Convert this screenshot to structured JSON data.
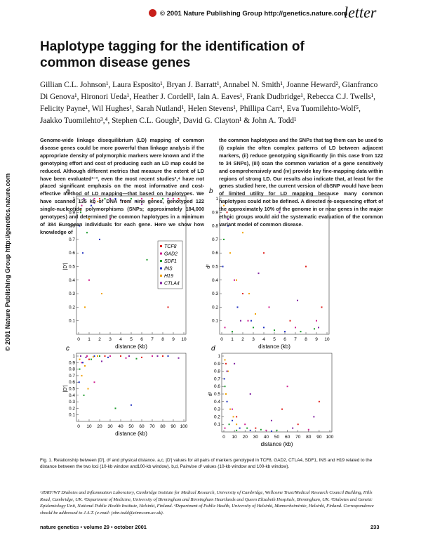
{
  "header": {
    "copyright": "© 2001 Nature Publishing Group http://genetics.nature.com",
    "section": "letter"
  },
  "side_text": "© 2001 Nature Publishing Group http://genetics.nature.com",
  "title": "Haplotype tagging for the identification of common disease genes",
  "authors": "Gillian C.L. Johnson¹, Laura Esposito¹, Bryan J. Barratt¹, Annabel N. Smith¹, Joanne Heward², Gianfranco Di Genova¹, Hironori Ueda¹, Heather J. Cordell¹, Iain A. Eaves¹, Frank Dudbridge¹, Rebecca C.J. Twells¹, Felicity Payne¹, Wil Hughes¹, Sarah Nutland¹, Helen Stevens¹, Phillipa Carr¹, Eva Tuomilehto-Wolf⁵, Jaakko Tuomilehto³,⁴, Stephen C.L. Gough², David G. Clayton¹ & John A. Todd¹",
  "abstract": [
    "Genome-wide linkage disequilibrium (LD) mapping of common disease genes could be more powerful than linkage analysis if the appropriate density of polymorphic markers were known and if the genotyping effort and cost of producing such an LD map could be reduced. Although different metrics that measure the extent of LD have been evaluated¹⁻³, even the most recent studies²,⁴ have not placed significant emphasis on the most informative and cost-effective method of LD mapping—that based on haplotypes. We have scanned 135 kb of DNA from nine genes, genotyped 122 single-nucleotide polymorphisms (SNPs; approximately 184,000 genotypes) and determined the common haplotypes in a minimum of 384 European individuals for each gene. Here we show how knowledge of",
    "the common haplotypes and the SNPs that tag them can be used to (i) explain the often complex patterns of LD between adjacent markers, (ii) reduce genotyping significantly (in this case from 122 to 34 SNPs), (iii) scan the common variation of a gene sensitively and comprehensively and (iv) provide key fine-mapping data within regions of strong LD. Our results also indicate that, at least for the genes studied here, the current version of dbSNP would have been of limited utility for LD mapping because many common haplotypes could not be defined. A directed re-sequencing effort of the approximately 10% of the genome in or near genes in the major ethnic groups would aid the systematic evaluation of the common variant model of common disease."
  ],
  "figure": {
    "legend": [
      {
        "name": "TCF8",
        "color": "#e0201c"
      },
      {
        "name": "GAD2",
        "color": "#d02090"
      },
      {
        "name": "SDF1",
        "color": "#1a9a2a"
      },
      {
        "name": "INS",
        "color": "#2030c0"
      },
      {
        "name": "H19",
        "color": "#f0a000"
      },
      {
        "name": "CTLA4",
        "color": "#8020a0"
      }
    ],
    "panels": [
      {
        "letter": "a",
        "ylabel": "|D′|",
        "xlabel": "distance (kb)",
        "xlim": [
          0,
          10
        ],
        "ylim": [
          0,
          1
        ],
        "xticks": [
          0,
          1,
          2,
          3,
          4,
          5,
          6,
          7,
          8,
          9,
          10
        ],
        "yticks": [
          0.1,
          0.2,
          0.3,
          0.4,
          0.5,
          0.6,
          0.7,
          0.8,
          0.9,
          1
        ],
        "series": [
          {
            "x": [
              0.5,
              2,
              4.5,
              7,
              8.5,
              9.5
            ],
            "y": [
              1,
              1,
              0.98,
              1,
              0.2,
              1
            ]
          },
          {
            "x": [
              0.3,
              1,
              1.5,
              3,
              6,
              9
            ],
            "y": [
              0.95,
              0.4,
              1,
              0.85,
              1,
              1
            ]
          },
          {
            "x": [
              0.2,
              0.8,
              2.5,
              5,
              6.5,
              8
            ],
            "y": [
              0.9,
              0.75,
              1,
              1,
              0.55,
              1
            ]
          },
          {
            "x": [
              0.1,
              0.4,
              1.2,
              2,
              3.5,
              5.5
            ],
            "y": [
              0.8,
              0.6,
              0.95,
              0.7,
              1,
              0.98
            ]
          },
          {
            "x": [
              0.2,
              0.6,
              1,
              1.8,
              2.2,
              3
            ],
            "y": [
              0.92,
              0.2,
              0.85,
              0.98,
              0.3,
              1
            ]
          },
          {
            "x": [
              0.5,
              1.5,
              3,
              4,
              6,
              8.5
            ],
            "y": [
              1,
              0.97,
              1,
              0.99,
              0.96,
              1
            ]
          }
        ]
      },
      {
        "letter": "b",
        "ylabel": "d²",
        "xlabel": "distance (kb)",
        "xlim": [
          0,
          10
        ],
        "ylim": [
          0,
          1
        ],
        "xticks": [
          0,
          1,
          2,
          3,
          4,
          5,
          6,
          7,
          8,
          9,
          10
        ],
        "yticks": [
          0.1,
          0.2,
          0.3,
          0.4,
          0.5,
          0.6,
          0.7,
          0.8,
          0.9,
          1
        ],
        "series": [
          {
            "x": [
              0.5,
              2,
              4,
              6.5,
              8,
              9.5
            ],
            "y": [
              0.9,
              0.3,
              0.6,
              0.1,
              0.5,
              0.2
            ]
          },
          {
            "x": [
              0.3,
              1.2,
              2.5,
              4.5,
              7,
              9
            ],
            "y": [
              0.05,
              0.4,
              0.1,
              0.2,
              0.05,
              0.1
            ]
          },
          {
            "x": [
              0.2,
              1,
              3,
              5,
              7.5,
              8.8
            ],
            "y": [
              0.7,
              0.02,
              0.05,
              0.03,
              0.02,
              0.04
            ]
          },
          {
            "x": [
              0.1,
              0.6,
              1.5,
              2.8,
              4,
              6
            ],
            "y": [
              0.5,
              0.8,
              0.2,
              0.1,
              0.05,
              0.02
            ]
          },
          {
            "x": [
              0.2,
              0.8,
              1.4,
              2,
              2.6,
              3.2
            ],
            "y": [
              0.95,
              0.6,
              0.4,
              0.75,
              0.3,
              0.15
            ]
          },
          {
            "x": [
              0.6,
              1.8,
              3.5,
              5.5,
              7.2,
              9.2
            ],
            "y": [
              0.85,
              0.1,
              0.45,
              0.9,
              0.25,
              0.05
            ]
          }
        ]
      },
      {
        "letter": "c",
        "ylabel": "|D′|",
        "xlabel": "distance (kb)",
        "xlim": [
          0,
          100
        ],
        "ylim": [
          0,
          1
        ],
        "xticks": [
          0,
          10,
          20,
          30,
          40,
          50,
          60,
          70,
          80,
          90,
          100
        ],
        "yticks": [
          0.1,
          0.2,
          0.3,
          0.4,
          0.5,
          0.6,
          0.7,
          0.8,
          0.9,
          1
        ],
        "series": [
          {
            "x": [
              2,
              10,
              25,
              40,
              60,
              80
            ],
            "y": [
              1,
              0.95,
              1,
              1,
              0.98,
              1
            ]
          },
          {
            "x": [
              3,
              8,
              15,
              30,
              45,
              70
            ],
            "y": [
              0.9,
              1,
              0.6,
              1,
              0.97,
              1
            ]
          },
          {
            "x": [
              1,
              5,
              12,
              20,
              35,
              55
            ],
            "y": [
              0.8,
              0.4,
              0.95,
              1,
              0.2,
              0.96
            ]
          },
          {
            "x": [
              0.5,
              4,
              15,
              28,
              50,
              85
            ],
            "y": [
              0.6,
              0.9,
              1,
              0.98,
              0.25,
              1
            ]
          },
          {
            "x": [
              1,
              3,
              6,
              9,
              14,
              18
            ],
            "y": [
              0.95,
              0.7,
              0.85,
              0.5,
              0.99,
              1
            ]
          },
          {
            "x": [
              2,
              7,
              22,
              48,
              75,
              95
            ],
            "y": [
              1,
              0.98,
              0.92,
              1,
              1,
              0.97
            ]
          }
        ]
      },
      {
        "letter": "d",
        "ylabel": "d²",
        "xlabel": "distance (kb)",
        "xlim": [
          0,
          100
        ],
        "ylim": [
          0,
          1
        ],
        "xticks": [
          0,
          10,
          20,
          30,
          40,
          50,
          60,
          70,
          80,
          90,
          100
        ],
        "yticks": [
          0.1,
          0.2,
          0.3,
          0.4,
          0.5,
          0.6,
          0.7,
          0.8,
          0.9,
          1
        ],
        "series": [
          {
            "x": [
              2,
              12,
              30,
              55,
              70,
              90
            ],
            "y": [
              0.9,
              0.2,
              0.05,
              0.3,
              0.1,
              0.4
            ]
          },
          {
            "x": [
              1,
              8,
              20,
              40,
              60,
              80
            ],
            "y": [
              0.05,
              0.3,
              0.1,
              0.02,
              0.6,
              0.03
            ]
          },
          {
            "x": [
              1,
              5,
              12,
              22,
              35,
              50
            ],
            "y": [
              0.6,
              0.1,
              0.02,
              0.05,
              0.03,
              0.02
            ]
          },
          {
            "x": [
              0.5,
              3,
              8,
              15,
              25,
              45
            ],
            "y": [
              0.7,
              0.4,
              0.15,
              0.05,
              0.02,
              0.01
            ]
          },
          {
            "x": [
              1,
              2,
              4,
              6,
              9,
              12
            ],
            "y": [
              0.95,
              0.5,
              0.8,
              0.3,
              0.2,
              0.1
            ]
          },
          {
            "x": [
              3,
              10,
              25,
              45,
              65,
              85
            ],
            "y": [
              0.8,
              0.9,
              0.5,
              0.15,
              0.05,
              0.2
            ]
          }
        ]
      }
    ]
  },
  "caption": "Fig. 1. Relationship between |D′|, d² and physical distance. a,c, |D′| values for all pairs of markers genotyped in TCF8, GAD2, CTLA4, SDF1, INS and H19 related to the distance between the two loci (10-kb window and100-kb window). b,d, Pairwise d² values (10-kb window and 100-kb window).",
  "affiliations": "¹JDRF/WT Diabetes and Inflammation Laboratory, Cambridge Institute for Medical Research, University of Cambridge, Wellcome Trust/Medical Research Council Building, Hills Road, Cambridge, UK. ²Department of Medicine, University of Birmingham and Birmingham Heartlands and Queen Elizabeth Hospitals, Birmingham, UK. ³Diabetes and Genetic Epidemiology Unit, National Public Health Institute, Helsinki, Finland. ⁴Department of Public Health, University of Helsinki, Mannerheimintie, Helsinki, Finland. Correspondence should be addressed to J.A.T. (e-mail: john.todd@cimr.cam.ac.uk).",
  "footer": {
    "journal": "nature genetics • volume 29 • october 2001",
    "page": "233"
  }
}
